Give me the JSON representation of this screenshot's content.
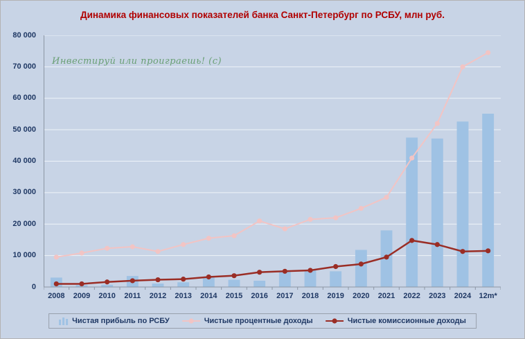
{
  "title": "Динамика финансовых показателей банка Санкт-Петербург по РСБУ, млн руб.",
  "watermark": "Инвестируй или проиграешь! (с)",
  "colors": {
    "background": "#c8d4e6",
    "title": "#b00000",
    "axis_text": "#1f3864",
    "gridline": "#eef3f9",
    "axis_line": "#8c96a4",
    "watermark": "#5f9a68",
    "legend_border": "#98a0ac"
  },
  "chart_data": {
    "type": "combo",
    "categories": [
      "2008",
      "2009",
      "2010",
      "2011",
      "2012",
      "2013",
      "2014",
      "2015",
      "2016",
      "2017",
      "2018",
      "2019",
      "2020",
      "2021",
      "2022",
      "2023",
      "2024",
      "12m*"
    ],
    "series": [
      {
        "id": "net_profit",
        "name": "Чистая прибыль по РСБУ",
        "type": "bar",
        "color": "#9fc2e4",
        "values": [
          3000,
          600,
          700,
          3500,
          1100,
          1500,
          3300,
          2300,
          2000,
          4800,
          5500,
          5000,
          11800,
          18000,
          47500,
          47200,
          52600,
          55100
        ]
      },
      {
        "id": "interest_income",
        "name": "Чистые процентные доходы",
        "type": "line",
        "color": "#f2c4c4",
        "stroke_width": 2,
        "values": [
          9500,
          10800,
          12300,
          12800,
          11300,
          13500,
          15500,
          16300,
          21000,
          18500,
          21500,
          22000,
          25000,
          28500,
          41000,
          52000,
          70000,
          74500
        ]
      },
      {
        "id": "commission_income",
        "name": "Чистые комиссионные доходы",
        "type": "line",
        "color": "#9a2d25",
        "stroke_width": 2.5,
        "values": [
          1000,
          1000,
          1600,
          2000,
          2300,
          2500,
          3200,
          3600,
          4700,
          5000,
          5300,
          6500,
          7300,
          9500,
          14800,
          13500,
          11300,
          11500
        ]
      }
    ],
    "ylim": [
      0,
      80000
    ],
    "y_ticks": [
      "0",
      "10 000",
      "20 000",
      "30 000",
      "40 000",
      "50 000",
      "60 000",
      "70 000",
      "80 000"
    ],
    "grid": true,
    "legend_position": "bottom"
  }
}
